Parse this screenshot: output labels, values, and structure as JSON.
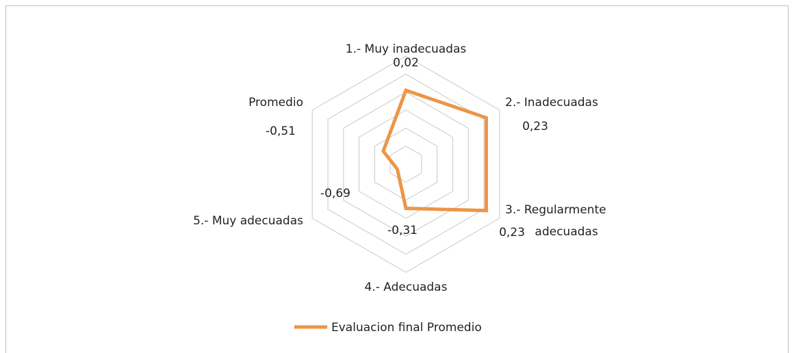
{
  "chart_data": {
    "type": "radar",
    "categories": [
      "1.- Muy inadecuadas",
      "2.- Inadecuadas",
      "3.- Regularmente adecuadas",
      "4.- Adecuadas",
      "5.- Muy adecuadas",
      "Promedio"
    ],
    "series": [
      {
        "name": "Evaluacion final Promedio",
        "color": "#ed9548",
        "values": [
          0.02,
          0.23,
          0.23,
          -0.31,
          -0.69,
          -0.51
        ],
        "value_labels": [
          "0,02",
          "0,23",
          "0,23",
          "-0,31",
          "-0,69",
          "-0,51"
        ]
      }
    ],
    "rlim": [
      -0.8,
      0.4
    ],
    "rticks": [
      -0.8,
      -0.6,
      -0.4,
      -0.2,
      0,
      0.2,
      0.4
    ],
    "grid": true,
    "legend": "bottom"
  }
}
